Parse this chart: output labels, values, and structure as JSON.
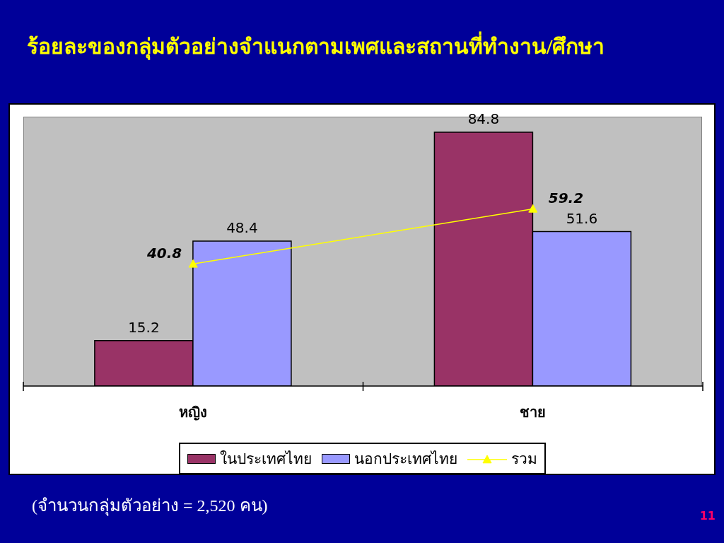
{
  "chart_data": {
    "type": "bar",
    "title": "ร้อยละของกลุ่มตัวอย่างจำแนกตามเพศและสถานที่ทำงาน/ศึกษา",
    "categories": [
      "หญิง",
      "ชาย"
    ],
    "series": [
      {
        "name": "ในประเทศไทย",
        "color": "#993366",
        "values": [
          15.2,
          84.8
        ]
      },
      {
        "name": "นอกประเทศไทย",
        "color": "#9999ff",
        "values": [
          48.4,
          51.6
        ]
      },
      {
        "name": "รวม",
        "type": "line",
        "color": "#ffff00",
        "values": [
          40.8,
          59.2
        ]
      }
    ],
    "ylim": [
      0,
      90
    ],
    "data_labels": true,
    "marker": "triangle",
    "legend": "bottom",
    "annotations": [
      "(จำนวนกลุ่มตัวอย่าง = 2,520 คน)",
      "11"
    ]
  }
}
